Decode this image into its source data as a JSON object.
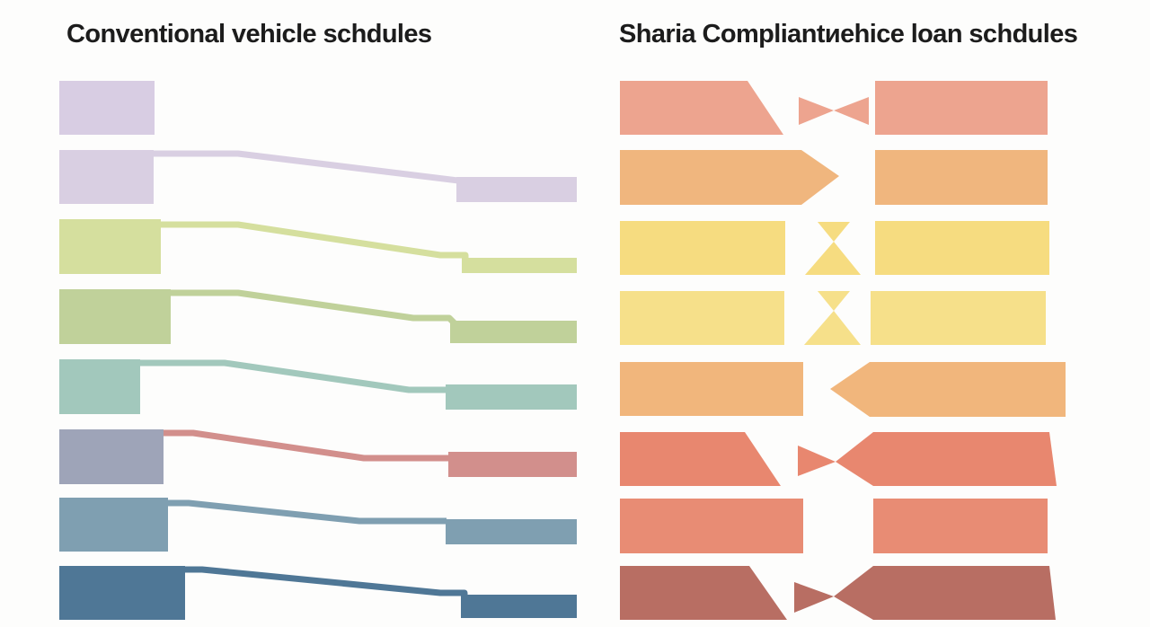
{
  "left_panel": {
    "title": "Conventional vehicle schdules",
    "rows": [
      {
        "color": "#d8cde3"
      },
      {
        "color": "#d9cfe2"
      },
      {
        "color": "#d5df9e"
      },
      {
        "color": "#c0d19a"
      },
      {
        "color": "#a2c8bc"
      },
      {
        "color": "#d28f8c",
        "block_color": "#9ea4b8"
      },
      {
        "color": "#7f9fb1"
      },
      {
        "color": "#4f7796"
      }
    ]
  },
  "right_panel": {
    "title": "Sharia Compliantиehice loan schdules",
    "rows": [
      {
        "color": "#eda48f"
      },
      {
        "color": "#f0b67e"
      },
      {
        "color": "#f6dc80"
      },
      {
        "color": "#f6e08a"
      },
      {
        "color": "#f1b67c"
      },
      {
        "color": "#e8876f"
      },
      {
        "color": "#e88c74"
      },
      {
        "color": "#b86e63"
      }
    ]
  }
}
